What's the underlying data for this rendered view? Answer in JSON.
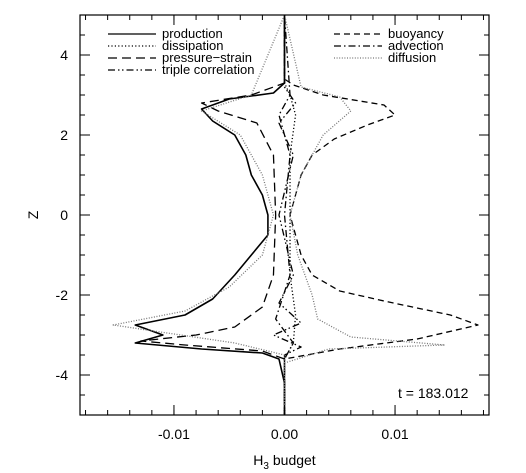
{
  "chart_data": {
    "type": "line",
    "xlabel": "H",
    "xlabel_subscript": "3",
    "xlabel_suffix": " budget",
    "ylabel": "Z",
    "xlim": [
      -0.0185,
      0.0185
    ],
    "ylim": [
      -5,
      5
    ],
    "x_ticks": [
      {
        "value": -0.01,
        "label": "-0.01"
      },
      {
        "value": 0.0,
        "label": "0.00"
      },
      {
        "value": 0.01,
        "label": "0.01"
      }
    ],
    "x_minor_step": 0.002,
    "y_ticks": [
      {
        "value": -4,
        "label": "-4"
      },
      {
        "value": -2,
        "label": "-2"
      },
      {
        "value": 0,
        "label": "0"
      },
      {
        "value": 2,
        "label": "2"
      },
      {
        "value": 4,
        "label": "4"
      }
    ],
    "y_minor_step": 0.5,
    "grid": false,
    "legend_placement": "top",
    "annotation": "t = 183.012",
    "series": [
      {
        "name": "production",
        "style": "solid",
        "color": "#000000",
        "points": [
          [
            0.0,
            -5
          ],
          [
            0.0,
            -4.2
          ],
          [
            -0.0005,
            -3.6
          ],
          [
            -0.002,
            -3.45
          ],
          [
            -0.0075,
            -3.35
          ],
          [
            -0.0135,
            -3.2
          ],
          [
            -0.011,
            -3.0
          ],
          [
            -0.0135,
            -2.75
          ],
          [
            -0.009,
            -2.5
          ],
          [
            -0.0065,
            -2.1
          ],
          [
            -0.0045,
            -1.5
          ],
          [
            -0.003,
            -1.0
          ],
          [
            -0.0015,
            -0.5
          ],
          [
            -0.0015,
            0.0
          ],
          [
            -0.002,
            0.5
          ],
          [
            -0.003,
            1.0
          ],
          [
            -0.0035,
            1.5
          ],
          [
            -0.0045,
            2.0
          ],
          [
            -0.0065,
            2.35
          ],
          [
            -0.0075,
            2.65
          ],
          [
            -0.005,
            2.9
          ],
          [
            -0.001,
            3.05
          ],
          [
            0.0,
            3.3
          ],
          [
            0.0,
            5
          ]
        ]
      },
      {
        "name": "dissipation",
        "style": "dotted",
        "color": "#000000",
        "points": [
          [
            0.0,
            -5
          ],
          [
            0.0,
            -3.6
          ],
          [
            0.0008,
            -3.2
          ],
          [
            0.001,
            -2.5
          ],
          [
            0.0005,
            -1.5
          ],
          [
            0.0005,
            0.0
          ],
          [
            0.0005,
            1.5
          ],
          [
            0.001,
            2.5
          ],
          [
            0.0005,
            3.0
          ],
          [
            0.0,
            3.3
          ],
          [
            0.0,
            5
          ]
        ]
      },
      {
        "name": "pressure-strain",
        "style": "long-dash",
        "color": "#000000",
        "points": [
          [
            0.0,
            -5
          ],
          [
            0.0,
            -3.6
          ],
          [
            -0.002,
            -3.4
          ],
          [
            -0.009,
            -3.25
          ],
          [
            -0.013,
            -3.15
          ],
          [
            -0.008,
            -3.0
          ],
          [
            -0.0045,
            -2.8
          ],
          [
            -0.002,
            -2.3
          ],
          [
            -0.001,
            -1.5
          ],
          [
            -0.0008,
            0.0
          ],
          [
            -0.001,
            1.5
          ],
          [
            -0.0025,
            2.3
          ],
          [
            -0.006,
            2.6
          ],
          [
            -0.0075,
            2.8
          ],
          [
            -0.003,
            3.0
          ],
          [
            0.0,
            3.3
          ],
          [
            0.0,
            5
          ]
        ]
      },
      {
        "name": "triple correlation",
        "style": "dash-dot-dot",
        "color": "#000000",
        "points": [
          [
            0.0,
            -5
          ],
          [
            0.0,
            -3.5
          ],
          [
            0.0015,
            -3.3
          ],
          [
            -0.001,
            -3.0
          ],
          [
            0.0015,
            -2.7
          ],
          [
            -0.0005,
            -2.2
          ],
          [
            0.0008,
            -1.5
          ],
          [
            -0.0005,
            0.0
          ],
          [
            0.0008,
            1.5
          ],
          [
            -0.0005,
            2.3
          ],
          [
            0.001,
            2.8
          ],
          [
            0.0,
            3.2
          ],
          [
            0.0,
            5
          ]
        ]
      },
      {
        "name": "buoyancy",
        "style": "short-dash",
        "color": "#000000",
        "points": [
          [
            0.0,
            -5
          ],
          [
            0.0,
            -3.6
          ],
          [
            0.005,
            -3.35
          ],
          [
            0.012,
            -3.1
          ],
          [
            0.0175,
            -2.75
          ],
          [
            0.015,
            -2.5
          ],
          [
            0.009,
            -2.15
          ],
          [
            0.005,
            -1.9
          ],
          [
            0.0025,
            -1.5
          ],
          [
            0.0015,
            -1.0
          ],
          [
            0.0005,
            0.0
          ],
          [
            0.0015,
            1.0
          ],
          [
            0.0025,
            1.5
          ],
          [
            0.0045,
            1.9
          ],
          [
            0.0075,
            2.25
          ],
          [
            0.01,
            2.5
          ],
          [
            0.009,
            2.75
          ],
          [
            0.0035,
            3.0
          ],
          [
            0.0008,
            3.25
          ],
          [
            0.0,
            3.4
          ],
          [
            0.0,
            5
          ]
        ]
      },
      {
        "name": "advection",
        "style": "dash-dot",
        "color": "#000000",
        "points": [
          [
            0.0,
            -5
          ],
          [
            0.0,
            -3.6
          ],
          [
            0.0008,
            -3.2
          ],
          [
            -0.0008,
            -2.6
          ],
          [
            0.0005,
            -1.5
          ],
          [
            0.0,
            0.0
          ],
          [
            0.0005,
            1.5
          ],
          [
            -0.0005,
            2.5
          ],
          [
            0.0005,
            3.0
          ],
          [
            0.0,
            5
          ]
        ]
      },
      {
        "name": "diffusion",
        "style": "fine-dot",
        "color": "#777777",
        "points": [
          [
            0.0,
            -5
          ],
          [
            0.0,
            -3.7
          ],
          [
            0.004,
            -3.35
          ],
          [
            0.0145,
            -3.25
          ],
          [
            0.006,
            -3.05
          ],
          [
            0.003,
            -2.6
          ],
          [
            0.0025,
            -2.0
          ],
          [
            0.0012,
            -1.0
          ],
          [
            0.0005,
            0.0
          ],
          [
            0.0015,
            1.0
          ],
          [
            0.0035,
            2.0
          ],
          [
            0.006,
            2.6
          ],
          [
            0.005,
            2.95
          ],
          [
            0.0015,
            3.2
          ],
          [
            0.0,
            5
          ]
        ]
      },
      {
        "name": "diffusion-gray-left",
        "style": "fine-dot",
        "color": "#777777",
        "points": [
          [
            0.0,
            -5
          ],
          [
            0.0,
            -3.5
          ],
          [
            -0.0045,
            -3.2
          ],
          [
            -0.0155,
            -2.75
          ],
          [
            -0.009,
            -2.4
          ],
          [
            -0.005,
            -1.8
          ],
          [
            -0.002,
            -1.0
          ],
          [
            -0.001,
            0.0
          ],
          [
            -0.002,
            1.0
          ],
          [
            -0.004,
            2.0
          ],
          [
            -0.0075,
            2.6
          ],
          [
            -0.003,
            3.0
          ],
          [
            0.0,
            5
          ]
        ]
      }
    ],
    "legend": {
      "left": [
        {
          "label": "production",
          "style": "solid"
        },
        {
          "label": "dissipation",
          "style": "dotted"
        },
        {
          "label": "pressure−strain",
          "style": "long-dash"
        },
        {
          "label": "triple correlation",
          "style": "dash-dot-dot"
        }
      ],
      "right": [
        {
          "label": "buoyancy",
          "style": "short-dash"
        },
        {
          "label": "advection",
          "style": "dash-dot"
        },
        {
          "label": "diffusion",
          "style": "fine-dot"
        }
      ]
    }
  }
}
